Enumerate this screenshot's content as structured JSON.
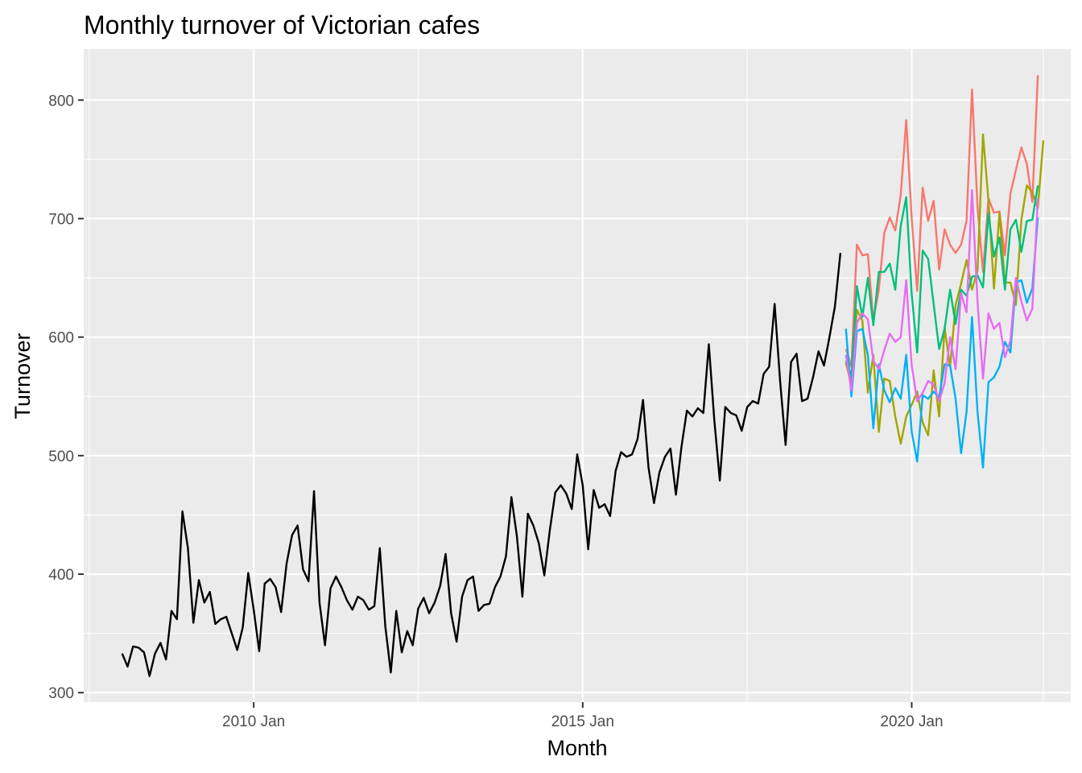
{
  "chart_data": {
    "type": "line",
    "title": "Monthly turnover of Victorian cafes",
    "xlabel": "Month",
    "ylabel": "Turnover",
    "ylim": [
      292,
      843
    ],
    "xlim": [
      "2007-06",
      "2022-06"
    ],
    "x_ticks": [
      {
        "date": "2010-01",
        "label": "2010 Jan"
      },
      {
        "date": "2015-01",
        "label": "2015 Jan"
      },
      {
        "date": "2020-01",
        "label": "2020 Jan"
      }
    ],
    "x_minor_ticks": [
      "2007-07",
      "2012-07",
      "2017-07",
      "2022-01"
    ],
    "y_ticks": [
      300,
      400,
      500,
      600,
      700,
      800
    ],
    "y_minor_ticks": [
      350,
      450,
      550,
      650,
      750
    ],
    "grid": true,
    "legend": "none",
    "background": "#ebebeb",
    "series": [
      {
        "role": "history",
        "color": "#000000",
        "start": "2008-01",
        "values": [
          333,
          322,
          339,
          338,
          334,
          314,
          333,
          342,
          328,
          369,
          362,
          453,
          422,
          359,
          395,
          376,
          385,
          358,
          362,
          364,
          350,
          336,
          355,
          401,
          370,
          335,
          392,
          396,
          389,
          368,
          409,
          433,
          441,
          404,
          394,
          470,
          376,
          340,
          388,
          398,
          389,
          378,
          370,
          381,
          378,
          370,
          373,
          422,
          356,
          317,
          369,
          334,
          352,
          340,
          371,
          380,
          367,
          376,
          390,
          417,
          367,
          343,
          381,
          395,
          398,
          369,
          374,
          375,
          389,
          398,
          415,
          465,
          432,
          381,
          451,
          441,
          426,
          399,
          437,
          469,
          475,
          468,
          455,
          501,
          475,
          421,
          471,
          456,
          459,
          449,
          487,
          503,
          499,
          501,
          514,
          547,
          490,
          460,
          486,
          499,
          506,
          467,
          507,
          538,
          533,
          540,
          536,
          594,
          530,
          479,
          541,
          536,
          534,
          521,
          541,
          546,
          544,
          569,
          575,
          628,
          563,
          509,
          579,
          586,
          546,
          548,
          566,
          588,
          576,
          600,
          626,
          671
        ]
      },
      {
        "role": "future-1",
        "color": "#f8766d",
        "start": "2019-01",
        "values": [
          590,
          575,
          678,
          669,
          670,
          614,
          640,
          688,
          701,
          690,
          720,
          783,
          700,
          639,
          726,
          698,
          715,
          657,
          691,
          678,
          671,
          678,
          698,
          809,
          710,
          655,
          717,
          705,
          706,
          669,
          721,
          741,
          760,
          746,
          714,
          821
        ]
      },
      {
        "role": "future-2",
        "color": "#a3a500",
        "start": "2019-01",
        "values": [
          578,
          560,
          623,
          614,
          553,
          585,
          520,
          565,
          563,
          533,
          510,
          533,
          543,
          554,
          528,
          517,
          572,
          533,
          608,
          575,
          627,
          645,
          665,
          640,
          656,
          771,
          715,
          641,
          705,
          646,
          646,
          627,
          699,
          728,
          722,
          709,
          766
        ]
      },
      {
        "role": "future-3",
        "color": "#00bf7d",
        "start": "2019-01",
        "values": [
          580,
          567,
          643,
          617,
          650,
          610,
          655,
          655,
          662,
          640,
          694,
          718,
          636,
          587,
          673,
          666,
          628,
          590,
          607,
          640,
          611,
          640,
          635,
          651,
          652,
          642,
          704,
          668,
          684,
          640,
          691,
          699,
          672,
          698,
          699,
          728
        ]
      },
      {
        "role": "future-4",
        "color": "#00b0f6",
        "start": "2019-01",
        "values": [
          607,
          550,
          605,
          607,
          585,
          523,
          577,
          555,
          545,
          557,
          548,
          585,
          520,
          495,
          551,
          548,
          554,
          549,
          577,
          576,
          548,
          502,
          537,
          617,
          537,
          490,
          562,
          566,
          575,
          596,
          587,
          646,
          648,
          629,
          641,
          701
        ]
      },
      {
        "role": "future-5",
        "color": "#e76bf3",
        "start": "2019-01",
        "values": [
          585,
          555,
          612,
          620,
          615,
          580,
          573,
          589,
          603,
          596,
          600,
          648,
          576,
          546,
          553,
          563,
          560,
          546,
          561,
          600,
          573,
          637,
          621,
          724,
          630,
          565,
          620,
          607,
          612,
          583,
          597,
          650,
          630,
          614,
          624,
          717
        ]
      }
    ]
  }
}
